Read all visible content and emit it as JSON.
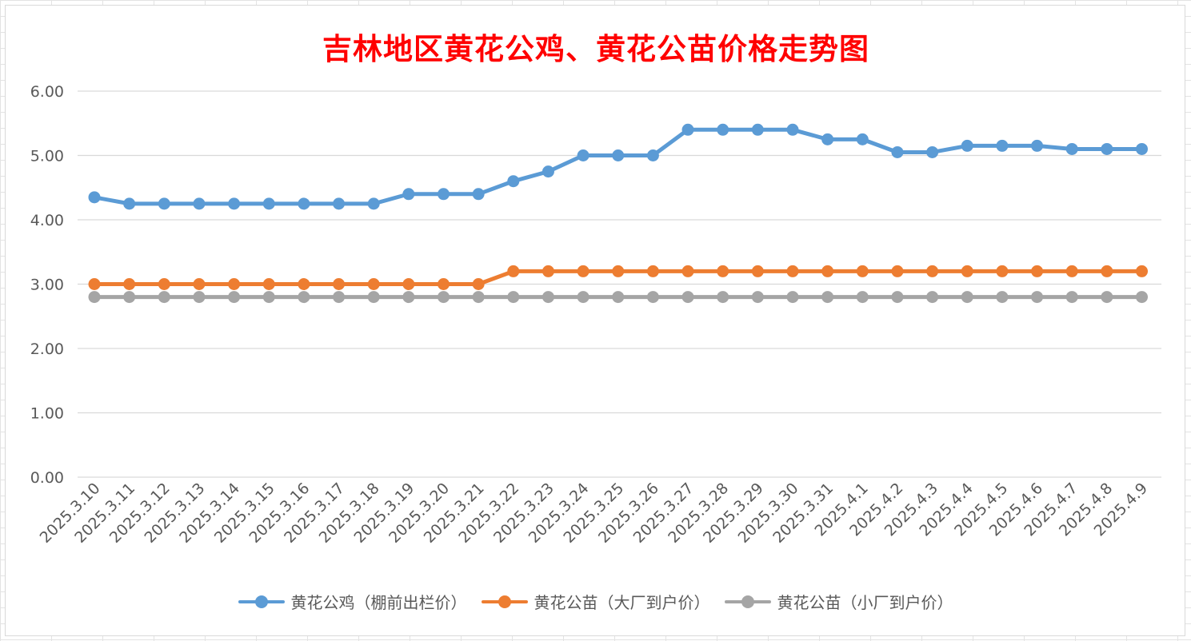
{
  "chart_data": {
    "type": "line",
    "title": "吉林地区黄花公鸡、黄花公苗价格走势图",
    "xlabel": "",
    "ylabel": "",
    "ylim": [
      0,
      6
    ],
    "yticks": [
      "0.00",
      "1.00",
      "2.00",
      "3.00",
      "4.00",
      "5.00",
      "6.00"
    ],
    "grid": true,
    "legend_position": "bottom",
    "categories": [
      "2025.3.10",
      "2025.3.11",
      "2025.3.12",
      "2025.3.13",
      "2025.3.14",
      "2025.3.15",
      "2025.3.16",
      "2025.3.17",
      "2025.3.18",
      "2025.3.19",
      "2025.3.20",
      "2025.3.21",
      "2025.3.22",
      "2025.3.23",
      "2025.3.24",
      "2025.3.25",
      "2025.3.26",
      "2025.3.27",
      "2025.3.28",
      "2025.3.29",
      "2025.3.30",
      "2025.3.31",
      "2025.4.1",
      "2025.4.2",
      "2025.4.3",
      "2025.4.4",
      "2025.4.5",
      "2025.4.6",
      "2025.4.7",
      "2025.4.8",
      "2025.4.9"
    ],
    "series": [
      {
        "name": "黄花公鸡（棚前出栏价）",
        "color": "#5b9bd5",
        "values": [
          4.35,
          4.25,
          4.25,
          4.25,
          4.25,
          4.25,
          4.25,
          4.25,
          4.25,
          4.4,
          4.4,
          4.4,
          4.6,
          4.75,
          5.0,
          5.0,
          5.0,
          5.4,
          5.4,
          5.4,
          5.4,
          5.25,
          5.25,
          5.05,
          5.05,
          5.15,
          5.15,
          5.15,
          5.1,
          5.1,
          5.1
        ]
      },
      {
        "name": "黄花公苗（大厂到户价）",
        "color": "#ed7d31",
        "values": [
          3.0,
          3.0,
          3.0,
          3.0,
          3.0,
          3.0,
          3.0,
          3.0,
          3.0,
          3.0,
          3.0,
          3.0,
          3.2,
          3.2,
          3.2,
          3.2,
          3.2,
          3.2,
          3.2,
          3.2,
          3.2,
          3.2,
          3.2,
          3.2,
          3.2,
          3.2,
          3.2,
          3.2,
          3.2,
          3.2,
          3.2
        ]
      },
      {
        "name": "黄花公苗（小厂到户价）",
        "color": "#a5a5a5",
        "values": [
          2.8,
          2.8,
          2.8,
          2.8,
          2.8,
          2.8,
          2.8,
          2.8,
          2.8,
          2.8,
          2.8,
          2.8,
          2.8,
          2.8,
          2.8,
          2.8,
          2.8,
          2.8,
          2.8,
          2.8,
          2.8,
          2.8,
          2.8,
          2.8,
          2.8,
          2.8,
          2.8,
          2.8,
          2.8,
          2.8,
          2.8
        ]
      }
    ]
  }
}
